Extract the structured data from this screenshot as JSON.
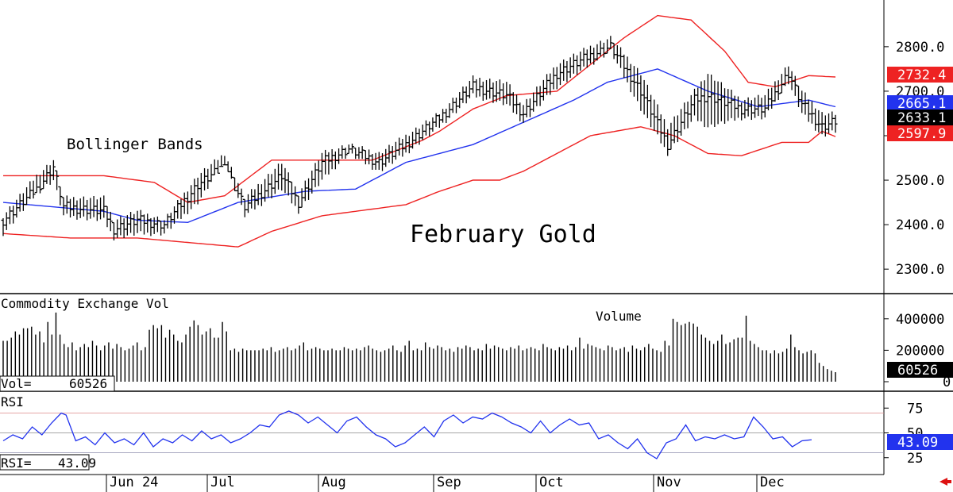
{
  "chart_data": {
    "type": "ohlc",
    "title": "February Gold",
    "annotation": "Bollinger Bands",
    "price_axis": {
      "ticks": [
        "2800.0",
        "2700.0",
        "2600.0",
        "2500.0",
        "2400.0",
        "2300.0"
      ],
      "tick_values": [
        2800,
        2700,
        2600,
        2500,
        2400,
        2300
      ],
      "ylim": [
        2245,
        2905
      ]
    },
    "x_months": [
      "Jun 24",
      "Jul",
      "Aug",
      "Sep",
      "Oct",
      "Nov",
      "Dec"
    ],
    "price_tags": {
      "upper_band": {
        "text": "2732.4",
        "value": 2732.4,
        "color": "#ee2222"
      },
      "middle_band": {
        "text": "2665.1",
        "value": 2665.1,
        "color": "#2233ee"
      },
      "last": {
        "text": "2633.1",
        "value": 2633.1,
        "color": "#000000"
      },
      "lower_band": {
        "text": "2597.9",
        "value": 2597.9,
        "color": "#ee2222"
      }
    },
    "ohlc_anchors": [
      {
        "i": 0,
        "low": 2380,
        "high": 2420,
        "close": 2410
      },
      {
        "i": 10,
        "low": 2470,
        "high": 2510,
        "close": 2480
      },
      {
        "i": 15,
        "low": 2500,
        "high": 2545,
        "close": 2530
      },
      {
        "i": 18,
        "low": 2420,
        "high": 2460,
        "close": 2440
      },
      {
        "i": 30,
        "low": 2410,
        "high": 2460,
        "close": 2430
      },
      {
        "i": 33,
        "low": 2370,
        "high": 2410,
        "close": 2390
      },
      {
        "i": 40,
        "low": 2380,
        "high": 2430,
        "close": 2410
      },
      {
        "i": 48,
        "low": 2380,
        "high": 2410,
        "close": 2400
      },
      {
        "i": 58,
        "low": 2450,
        "high": 2510,
        "close": 2490
      },
      {
        "i": 66,
        "low": 2540,
        "high": 2560,
        "close": 2530
      },
      {
        "i": 72,
        "low": 2420,
        "high": 2460,
        "close": 2440
      },
      {
        "i": 83,
        "low": 2480,
        "high": 2540,
        "close": 2510
      },
      {
        "i": 88,
        "low": 2430,
        "high": 2470,
        "close": 2450
      },
      {
        "i": 95,
        "low": 2500,
        "high": 2560,
        "close": 2540
      },
      {
        "i": 103,
        "low": 2560,
        "high": 2580,
        "close": 2570
      },
      {
        "i": 112,
        "low": 2520,
        "high": 2560,
        "close": 2540
      },
      {
        "i": 120,
        "low": 2560,
        "high": 2600,
        "close": 2580
      },
      {
        "i": 130,
        "low": 2620,
        "high": 2650,
        "close": 2640
      },
      {
        "i": 140,
        "low": 2690,
        "high": 2730,
        "close": 2710
      },
      {
        "i": 150,
        "low": 2670,
        "high": 2720,
        "close": 2690
      },
      {
        "i": 155,
        "low": 2630,
        "high": 2670,
        "close": 2650
      },
      {
        "i": 165,
        "low": 2710,
        "high": 2760,
        "close": 2740
      },
      {
        "i": 175,
        "low": 2760,
        "high": 2800,
        "close": 2780
      },
      {
        "i": 181,
        "low": 2790,
        "high": 2820,
        "close": 2800
      },
      {
        "i": 190,
        "low": 2660,
        "high": 2740,
        "close": 2700
      },
      {
        "i": 198,
        "low": 2560,
        "high": 2620,
        "close": 2580
      },
      {
        "i": 206,
        "low": 2640,
        "high": 2700,
        "close": 2680
      },
      {
        "i": 210,
        "low": 2620,
        "high": 2740,
        "close": 2690
      },
      {
        "i": 220,
        "low": 2640,
        "high": 2680,
        "close": 2660
      },
      {
        "i": 227,
        "low": 2640,
        "high": 2690,
        "close": 2660
      },
      {
        "i": 234,
        "low": 2720,
        "high": 2760,
        "close": 2740
      },
      {
        "i": 238,
        "low": 2650,
        "high": 2700,
        "close": 2670
      },
      {
        "i": 244,
        "low": 2600,
        "high": 2650,
        "close": 2620
      },
      {
        "i": 248,
        "low": 2610,
        "high": 2650,
        "close": 2633
      }
    ],
    "bollinger": {
      "upper": [
        [
          0,
          2510
        ],
        [
          30,
          2510
        ],
        [
          45,
          2495
        ],
        [
          55,
          2450
        ],
        [
          66,
          2465
        ],
        [
          80,
          2545
        ],
        [
          110,
          2545
        ],
        [
          125,
          2590
        ],
        [
          130,
          2610
        ],
        [
          140,
          2660
        ],
        [
          150,
          2690
        ],
        [
          165,
          2700
        ],
        [
          175,
          2760
        ],
        [
          185,
          2820
        ],
        [
          195,
          2870
        ],
        [
          205,
          2860
        ],
        [
          215,
          2790
        ],
        [
          222,
          2720
        ],
        [
          230,
          2710
        ],
        [
          240,
          2735
        ],
        [
          248,
          2732
        ]
      ],
      "middle": [
        [
          0,
          2450
        ],
        [
          30,
          2430
        ],
        [
          40,
          2410
        ],
        [
          55,
          2405
        ],
        [
          70,
          2450
        ],
        [
          90,
          2475
        ],
        [
          105,
          2480
        ],
        [
          120,
          2540
        ],
        [
          140,
          2580
        ],
        [
          155,
          2630
        ],
        [
          170,
          2680
        ],
        [
          180,
          2720
        ],
        [
          195,
          2750
        ],
        [
          210,
          2700
        ],
        [
          225,
          2665
        ],
        [
          240,
          2680
        ],
        [
          248,
          2665
        ]
      ],
      "lower": [
        [
          0,
          2380
        ],
        [
          20,
          2370
        ],
        [
          40,
          2370
        ],
        [
          55,
          2360
        ],
        [
          70,
          2350
        ],
        [
          80,
          2385
        ],
        [
          95,
          2420
        ],
        [
          110,
          2435
        ],
        [
          120,
          2445
        ],
        [
          130,
          2475
        ],
        [
          140,
          2500
        ],
        [
          148,
          2500
        ],
        [
          155,
          2520
        ],
        [
          165,
          2560
        ],
        [
          175,
          2600
        ],
        [
          190,
          2620
        ],
        [
          200,
          2600
        ],
        [
          210,
          2560
        ],
        [
          220,
          2555
        ],
        [
          232,
          2585
        ],
        [
          240,
          2585
        ],
        [
          244,
          2610
        ],
        [
          248,
          2598
        ]
      ]
    },
    "volume": {
      "label": "Commodity Exchange Vol",
      "series_label": "Volume",
      "readout_label": "Vol=",
      "readout_value": "60526",
      "last_tag": "60526",
      "ticks": [
        "400000",
        "200000",
        "0"
      ],
      "tick_values": [
        400000,
        200000,
        0
      ],
      "ylim": [
        0,
        520000
      ],
      "values": [
        260000,
        260000,
        280000,
        320000,
        300000,
        340000,
        340000,
        350000,
        300000,
        320000,
        250000,
        380000,
        300000,
        440000,
        300000,
        240000,
        220000,
        250000,
        200000,
        220000,
        240000,
        220000,
        260000,
        230000,
        200000,
        230000,
        250000,
        210000,
        240000,
        220000,
        200000,
        210000,
        230000,
        250000,
        200000,
        220000,
        330000,
        360000,
        340000,
        360000,
        280000,
        330000,
        300000,
        260000,
        250000,
        300000,
        350000,
        390000,
        360000,
        300000,
        320000,
        340000,
        280000,
        280000,
        380000,
        320000,
        200000,
        210000,
        190000,
        210000,
        200000,
        200000,
        200000,
        200000,
        210000,
        200000,
        220000,
        190000,
        200000,
        210000,
        220000,
        200000,
        210000,
        230000,
        250000,
        200000,
        210000,
        220000,
        210000,
        200000,
        200000,
        210000,
        200000,
        200000,
        220000,
        210000,
        200000,
        210000,
        200000,
        220000,
        230000,
        210000,
        200000,
        190000,
        200000,
        210000,
        230000,
        200000,
        190000,
        230000,
        260000,
        200000,
        210000,
        200000,
        250000,
        220000,
        210000,
        230000,
        220000,
        200000,
        210000,
        190000,
        220000,
        210000,
        230000,
        220000,
        200000,
        210000,
        200000,
        240000,
        210000,
        230000,
        220000,
        210000,
        200000,
        220000,
        210000,
        230000,
        200000,
        210000,
        220000,
        210000,
        200000,
        240000,
        220000,
        210000,
        200000,
        220000,
        210000,
        230000,
        200000,
        220000,
        280000,
        210000,
        240000,
        230000,
        220000,
        210000,
        200000,
        230000,
        220000,
        200000,
        210000,
        220000,
        190000,
        230000,
        210000,
        200000,
        220000,
        240000,
        210000,
        200000,
        190000,
        260000,
        230000,
        400000,
        380000,
        360000,
        370000,
        380000,
        370000,
        350000,
        300000,
        280000,
        260000,
        240000,
        260000,
        300000,
        240000,
        250000,
        270000,
        280000,
        280000,
        420000,
        260000,
        240000,
        220000,
        200000,
        200000,
        180000,
        200000,
        180000,
        190000,
        210000,
        300000,
        220000,
        200000,
        180000,
        190000,
        200000,
        180000,
        120000,
        100000,
        80000,
        70000,
        60526
      ]
    },
    "rsi": {
      "label": "RSI",
      "readout_label": "RSI=",
      "readout_value": "43.09",
      "last_tag": "43.09",
      "ticks": [
        "75",
        "50",
        "25"
      ],
      "tick_values": [
        75,
        50,
        25
      ],
      "ylim": [
        8,
        92
      ],
      "levels": [
        70,
        30
      ],
      "anchors": [
        [
          0,
          42
        ],
        [
          4,
          48
        ],
        [
          8,
          44
        ],
        [
          12,
          56
        ],
        [
          16,
          48
        ],
        [
          20,
          60
        ],
        [
          24,
          70
        ],
        [
          26,
          68
        ],
        [
          30,
          42
        ],
        [
          34,
          46
        ],
        [
          38,
          38
        ],
        [
          42,
          50
        ],
        [
          46,
          40
        ],
        [
          50,
          44
        ],
        [
          54,
          38
        ],
        [
          58,
          50
        ],
        [
          62,
          36
        ],
        [
          66,
          44
        ],
        [
          70,
          40
        ],
        [
          74,
          48
        ],
        [
          78,
          42
        ],
        [
          82,
          52
        ],
        [
          86,
          44
        ],
        [
          90,
          48
        ],
        [
          94,
          40
        ],
        [
          98,
          44
        ],
        [
          102,
          50
        ],
        [
          106,
          58
        ],
        [
          110,
          56
        ],
        [
          114,
          68
        ],
        [
          118,
          72
        ],
        [
          122,
          68
        ],
        [
          126,
          60
        ],
        [
          130,
          66
        ],
        [
          134,
          58
        ],
        [
          138,
          50
        ],
        [
          142,
          62
        ],
        [
          146,
          66
        ],
        [
          150,
          56
        ],
        [
          154,
          48
        ],
        [
          158,
          44
        ],
        [
          162,
          36
        ],
        [
          166,
          40
        ],
        [
          170,
          48
        ],
        [
          174,
          56
        ],
        [
          178,
          46
        ],
        [
          182,
          62
        ],
        [
          186,
          68
        ],
        [
          190,
          60
        ],
        [
          194,
          66
        ],
        [
          198,
          64
        ],
        [
          202,
          70
        ],
        [
          206,
          66
        ],
        [
          210,
          60
        ],
        [
          214,
          56
        ],
        [
          218,
          50
        ],
        [
          222,
          62
        ],
        [
          226,
          50
        ],
        [
          230,
          58
        ],
        [
          234,
          64
        ],
        [
          238,
          58
        ],
        [
          242,
          60
        ],
        [
          246,
          44
        ],
        [
          250,
          48
        ],
        [
          254,
          40
        ],
        [
          258,
          34
        ],
        [
          262,
          44
        ],
        [
          266,
          30
        ],
        [
          270,
          24
        ],
        [
          274,
          40
        ],
        [
          278,
          44
        ],
        [
          282,
          58
        ],
        [
          286,
          42
        ],
        [
          290,
          46
        ],
        [
          294,
          44
        ],
        [
          298,
          48
        ],
        [
          302,
          44
        ],
        [
          306,
          46
        ],
        [
          310,
          66
        ],
        [
          314,
          56
        ],
        [
          318,
          44
        ],
        [
          322,
          46
        ],
        [
          326,
          36
        ],
        [
          330,
          42
        ],
        [
          334,
          43.09
        ]
      ]
    },
    "colors": {
      "up_band": "#ee2222",
      "mid_band": "#2233ee",
      "bars": "#000000",
      "rsi_line": "#2233ee",
      "grid": "#888888",
      "red_marker": "#dd1111"
    }
  }
}
